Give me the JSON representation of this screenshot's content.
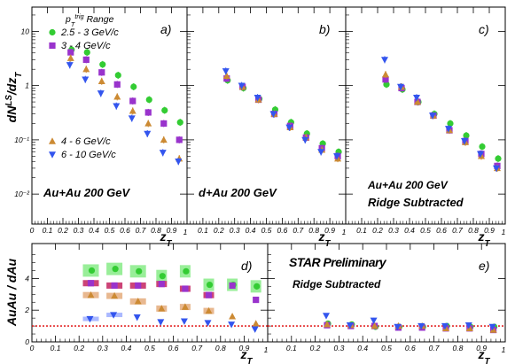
{
  "colors": {
    "green": "#33cc33",
    "purple": "#9933cc",
    "orange": "#cc8a33",
    "blue": "#3355ee",
    "green_box": "#99ee99",
    "purple_box": "#cc4477",
    "orange_box": "#e8b890",
    "blue_box": "#aab8ff",
    "reference_line": "#dd0000"
  },
  "chart_data": [
    {
      "panel": "a",
      "type": "scatter",
      "panel_letter": "a)",
      "title": "",
      "xlabel": "z_T",
      "ylabel": "dN^{LS}/dz_T",
      "yscale": "log",
      "xlim": [
        0,
        1
      ],
      "ylim": [
        0.0028,
        28
      ],
      "legend_title": "p_T^{trig} Range",
      "annotations": [
        "Au+Au 200 GeV"
      ],
      "series": [
        {
          "name": "2.5 - 3 GeV/c",
          "color_key": "green",
          "marker": "circle",
          "x": [
            0.25,
            0.35,
            0.45,
            0.55,
            0.65,
            0.75,
            0.85,
            0.95
          ],
          "y": [
            4.6,
            4.1,
            2.45,
            1.55,
            0.95,
            0.55,
            0.35,
            0.21
          ]
        },
        {
          "name": "3 - 4 GeV/c",
          "color_key": "purple",
          "marker": "square",
          "x": [
            0.25,
            0.35,
            0.45,
            0.55,
            0.65,
            0.75,
            0.85,
            0.95
          ],
          "y": [
            4.1,
            3.0,
            1.75,
            1.05,
            0.52,
            0.32,
            0.2,
            0.1
          ]
        },
        {
          "name": "4 - 6 GeV/c",
          "color_key": "orange",
          "marker": "triangle-up",
          "x": [
            0.25,
            0.35,
            0.45,
            0.55,
            0.65,
            0.75,
            0.85,
            0.95
          ],
          "y": [
            3.2,
            2.0,
            1.2,
            0.62,
            0.34,
            0.2,
            0.1,
            0.045
          ]
        },
        {
          "name": "6 - 10 GeV/c",
          "color_key": "blue",
          "marker": "triangle-down",
          "x": [
            0.25,
            0.35,
            0.45,
            0.55,
            0.65,
            0.75,
            0.85,
            0.95
          ],
          "y": [
            2.4,
            1.3,
            0.72,
            0.42,
            0.25,
            0.13,
            0.058,
            0.04
          ]
        }
      ]
    },
    {
      "panel": "b",
      "type": "scatter",
      "panel_letter": "b)",
      "title": "",
      "xlabel": "z_T",
      "yscale": "log",
      "xlim": [
        0,
        1
      ],
      "ylim": [
        0.0028,
        28
      ],
      "annotations": [
        "d+Au 200 GeV"
      ],
      "series": [
        {
          "name": "2.5 - 3 GeV/c",
          "color_key": "green",
          "marker": "circle",
          "x": [
            0.25,
            0.35,
            0.45,
            0.55,
            0.65,
            0.75,
            0.85,
            0.95
          ],
          "y": [
            1.25,
            0.9,
            0.57,
            0.36,
            0.21,
            0.13,
            0.085,
            0.06
          ]
        },
        {
          "name": "3 - 4 GeV/c",
          "color_key": "purple",
          "marker": "square",
          "x": [
            0.25,
            0.35,
            0.45,
            0.55,
            0.65,
            0.75,
            0.85,
            0.95
          ],
          "y": [
            1.35,
            0.95,
            0.55,
            0.3,
            0.18,
            0.11,
            0.07,
            0.05
          ]
        },
        {
          "name": "4 - 6 GeV/c",
          "color_key": "orange",
          "marker": "triangle-up",
          "x": [
            0.25,
            0.35,
            0.45,
            0.55,
            0.65,
            0.75,
            0.85,
            0.95
          ],
          "y": [
            1.5,
            0.95,
            0.55,
            0.3,
            0.17,
            0.11,
            0.065,
            0.045
          ]
        },
        {
          "name": "6 - 10 GeV/c",
          "color_key": "blue",
          "marker": "triangle-down",
          "x": [
            0.25,
            0.35,
            0.45,
            0.55,
            0.65,
            0.75,
            0.85,
            0.95
          ],
          "y": [
            1.85,
            1.0,
            0.6,
            0.3,
            0.17,
            0.1,
            0.06,
            0.05
          ]
        }
      ]
    },
    {
      "panel": "c",
      "type": "scatter",
      "panel_letter": "c)",
      "title": "",
      "xlabel": "z_T",
      "yscale": "log",
      "xlim": [
        0,
        1
      ],
      "ylim": [
        0.0028,
        28
      ],
      "annotations": [
        "Au+Au 200 GeV",
        "Ridge Subtracted"
      ],
      "series": [
        {
          "name": "2.5 - 3 GeV/c",
          "color_key": "green",
          "marker": "circle",
          "x": [
            0.25,
            0.35,
            0.45,
            0.55,
            0.65,
            0.75,
            0.85,
            0.95
          ],
          "y": [
            1.05,
            0.85,
            0.5,
            0.3,
            0.2,
            0.12,
            0.075,
            0.045
          ]
        },
        {
          "name": "3 - 4 GeV/c",
          "color_key": "purple",
          "marker": "square",
          "x": [
            0.25,
            0.35,
            0.45,
            0.55,
            0.65,
            0.75,
            0.85,
            0.95
          ],
          "y": [
            1.3,
            0.9,
            0.5,
            0.28,
            0.15,
            0.095,
            0.055,
            0.033
          ]
        },
        {
          "name": "4 - 6 GeV/c",
          "color_key": "orange",
          "marker": "triangle-up",
          "x": [
            0.25,
            0.35,
            0.45,
            0.55,
            0.65,
            0.75,
            0.85,
            0.95
          ],
          "y": [
            1.6,
            0.95,
            0.5,
            0.28,
            0.15,
            0.09,
            0.05,
            0.03
          ]
        },
        {
          "name": "6 - 10 GeV/c",
          "color_key": "blue",
          "marker": "triangle-down",
          "x": [
            0.25,
            0.35,
            0.45,
            0.55,
            0.65,
            0.75,
            0.85,
            0.95
          ],
          "y": [
            3.0,
            0.95,
            0.6,
            0.28,
            0.16,
            0.095,
            0.055,
            0.03
          ]
        }
      ]
    },
    {
      "panel": "d",
      "type": "scatter",
      "panel_letter": "d)",
      "title": "",
      "xlabel": "z_T",
      "ylabel": "AuAu / dAu",
      "yscale": "linear",
      "xlim": [
        0,
        1
      ],
      "ylim": [
        0,
        6.2
      ],
      "reference_line_y": 1,
      "annotations": [],
      "series": [
        {
          "name": "2.5 - 3 GeV/c",
          "color_key": "green",
          "marker": "circle",
          "x": [
            0.25,
            0.35,
            0.45,
            0.55,
            0.65,
            0.75,
            0.85,
            0.95
          ],
          "y": [
            4.5,
            4.6,
            4.45,
            4.15,
            4.45,
            3.6,
            3.6,
            3.5
          ]
        },
        {
          "name": "3 - 4 GeV/c",
          "color_key": "purple",
          "marker": "square",
          "x": [
            0.25,
            0.35,
            0.45,
            0.55,
            0.65,
            0.75,
            0.85,
            0.95
          ],
          "y": [
            3.7,
            3.55,
            3.55,
            3.65,
            3.35,
            2.95,
            3.55,
            2.65
          ]
        },
        {
          "name": "4 - 6 GeV/c",
          "color_key": "orange",
          "marker": "triangle-up",
          "x": [
            0.25,
            0.35,
            0.45,
            0.55,
            0.65,
            0.75,
            0.85,
            0.95
          ],
          "y": [
            2.95,
            2.9,
            2.55,
            2.1,
            2.2,
            1.95,
            1.6,
            1.15
          ]
        },
        {
          "name": "6 - 10 GeV/c",
          "color_key": "blue",
          "marker": "triangle-down",
          "x": [
            0.25,
            0.35,
            0.45,
            0.55,
            0.65,
            0.75,
            0.85,
            0.95
          ],
          "y": [
            1.45,
            1.7,
            1.55,
            1.25,
            1.3,
            1.2,
            1.1,
            0.8
          ]
        }
      ]
    },
    {
      "panel": "e",
      "type": "scatter",
      "panel_letter": "e)",
      "title": "",
      "xlabel": "z_T",
      "yscale": "linear",
      "xlim": [
        0,
        1
      ],
      "ylim": [
        0,
        6.2
      ],
      "reference_line_y": 1,
      "annotations": [
        "STAR Preliminary",
        "Ridge Subtracted"
      ],
      "series": [
        {
          "name": "2.5 - 3 GeV/c",
          "color_key": "green",
          "marker": "circle",
          "x": [
            0.25,
            0.35,
            0.45,
            0.55,
            0.65,
            0.75,
            0.85,
            0.95
          ],
          "y": [
            1.15,
            1.1,
            0.95,
            0.95,
            0.95,
            1.0,
            0.95,
            0.95
          ]
        },
        {
          "name": "3 - 4 GeV/c",
          "color_key": "purple",
          "marker": "square",
          "x": [
            0.25,
            0.35,
            0.45,
            0.55,
            0.65,
            0.75,
            0.85,
            0.95
          ],
          "y": [
            1.05,
            1.0,
            1.0,
            0.9,
            0.9,
            0.85,
            0.85,
            0.75
          ]
        },
        {
          "name": "4 - 6 GeV/c",
          "color_key": "orange",
          "marker": "triangle-up",
          "x": [
            0.25,
            0.35,
            0.45,
            0.55,
            0.65,
            0.75,
            0.85,
            0.95
          ],
          "y": [
            1.1,
            1.05,
            1.0,
            1.0,
            1.0,
            0.85,
            0.85,
            0.75
          ]
        },
        {
          "name": "6 - 10 GeV/c",
          "color_key": "blue",
          "marker": "triangle-down",
          "x": [
            0.25,
            0.35,
            0.45,
            0.55,
            0.65,
            0.75,
            0.85,
            0.95
          ],
          "y": [
            1.65,
            1.05,
            1.35,
            0.95,
            1.0,
            1.0,
            1.05,
            0.95
          ]
        }
      ]
    }
  ],
  "ticks": {
    "log_y_decades": [
      {
        "value": 10,
        "label": "10"
      },
      {
        "value": 1,
        "label": "1"
      },
      {
        "value": 0.1,
        "label": "10⁻¹"
      },
      {
        "value": 0.01,
        "label": "10⁻²"
      }
    ],
    "linear_y": [
      {
        "value": 0,
        "label": "0"
      },
      {
        "value": 2,
        "label": "2"
      },
      {
        "value": 4,
        "label": "4"
      }
    ],
    "x_full": [
      {
        "value": 0,
        "label": "0"
      },
      {
        "value": 0.1,
        "label": "0.1"
      },
      {
        "value": 0.2,
        "label": "0.2"
      },
      {
        "value": 0.3,
        "label": "0.3"
      },
      {
        "value": 0.4,
        "label": "0.4"
      },
      {
        "value": 0.5,
        "label": "0.5"
      },
      {
        "value": 0.6,
        "label": "0.6"
      },
      {
        "value": 0.7,
        "label": "0.7"
      },
      {
        "value": 0.8,
        "label": "0.8"
      },
      {
        "value": 0.9,
        "label": "0.9"
      }
    ],
    "x_mid": [
      {
        "value": 0.1,
        "label": "0.1"
      },
      {
        "value": 0.2,
        "label": "0.2"
      },
      {
        "value": 0.3,
        "label": "0.3"
      },
      {
        "value": 0.4,
        "label": "0.4"
      },
      {
        "value": 0.5,
        "label": "0.5"
      },
      {
        "value": 0.6,
        "label": "0.6"
      },
      {
        "value": 0.7,
        "label": "0.7"
      },
      {
        "value": 0.8,
        "label": "0.8"
      },
      {
        "value": 0.9,
        "label": "0.9"
      }
    ],
    "x_end_label": "1"
  }
}
